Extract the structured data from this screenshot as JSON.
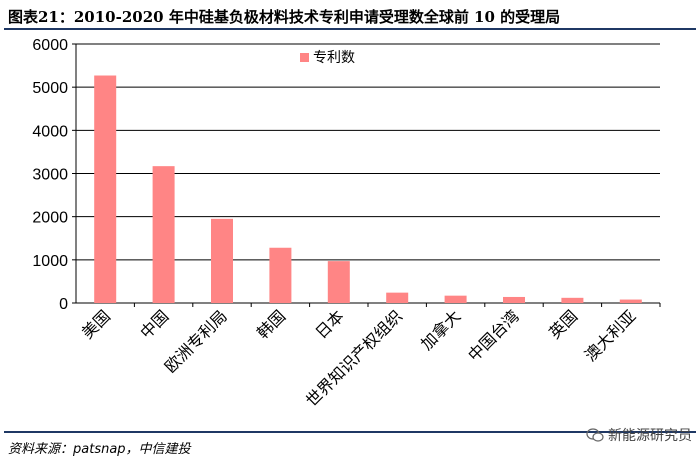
{
  "figure": {
    "label": "图表21：",
    "title": "2010-2020 年中硅基负极材料技术专利申请受理数全球前 10 的受理局"
  },
  "footer": {
    "source": "资料来源：patsnap，中信建投"
  },
  "watermark": {
    "icon": "wechat-icon",
    "text": "新能源研究员"
  },
  "colors": {
    "bar": "#ff8585",
    "grid": "#000000",
    "rule": "#1f3864"
  },
  "chart_data": {
    "type": "bar",
    "categories": [
      "美国",
      "中国",
      "欧洲专利局",
      "韩国",
      "日本",
      "世界知识产权组织",
      "加拿大",
      "中国台湾",
      "英国",
      "澳大利亚"
    ],
    "series": [
      {
        "name": "专利数",
        "values": [
          5270,
          3170,
          1950,
          1280,
          970,
          240,
          170,
          140,
          120,
          80
        ]
      }
    ],
    "yticks": [
      "0",
      "1000",
      "2000",
      "3000",
      "4000",
      "5000",
      "6000"
    ],
    "ylim": [
      0,
      6000
    ],
    "grid": true,
    "legend_position": "top-center"
  }
}
